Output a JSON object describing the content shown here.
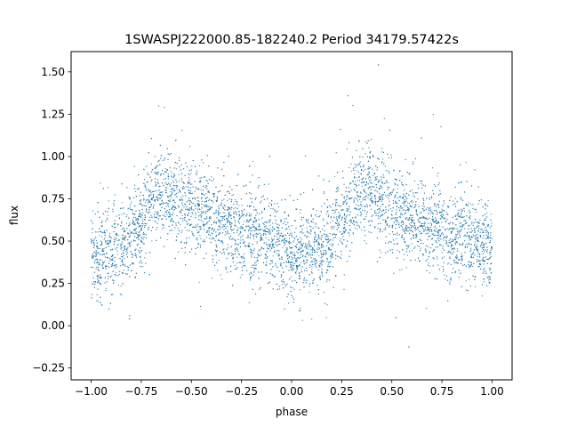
{
  "chart_data": {
    "type": "scatter",
    "title": "1SWASPJ222000.85-182240.2 Period 34179.57422s",
    "xlabel": "phase",
    "ylabel": "flux",
    "xlim": [
      -1.1,
      1.1
    ],
    "ylim": [
      -0.32,
      1.62
    ],
    "xticks": [
      -1.0,
      -0.75,
      -0.5,
      -0.25,
      0.0,
      0.25,
      0.5,
      0.75,
      1.0
    ],
    "xtick_labels": [
      "−1.00",
      "−0.75",
      "−0.50",
      "−0.25",
      "0.00",
      "0.25",
      "0.50",
      "0.75",
      "1.00"
    ],
    "yticks": [
      -0.25,
      0.0,
      0.25,
      0.5,
      0.75,
      1.0,
      1.25,
      1.5
    ],
    "ytick_labels": [
      "−0.25",
      "0.00",
      "0.25",
      "0.50",
      "0.75",
      "1.00",
      "1.25",
      "1.50"
    ],
    "grid": false,
    "point_color": "#1f77b4",
    "phase_range": [
      -1.0,
      1.0
    ],
    "mean_curve": {
      "phase": [
        0.0,
        0.05,
        0.1,
        0.15,
        0.2,
        0.25,
        0.3,
        0.35,
        0.4,
        0.45,
        0.5,
        0.55,
        0.6,
        0.65,
        0.7,
        0.75,
        0.8,
        0.85,
        0.9,
        0.95,
        1.0
      ],
      "flux": [
        0.42,
        0.42,
        0.44,
        0.46,
        0.52,
        0.62,
        0.74,
        0.8,
        0.78,
        0.74,
        0.7,
        0.67,
        0.64,
        0.61,
        0.58,
        0.56,
        0.54,
        0.52,
        0.5,
        0.47,
        0.44
      ]
    },
    "scatter_sigma": 0.13,
    "n_points": 7000
  }
}
